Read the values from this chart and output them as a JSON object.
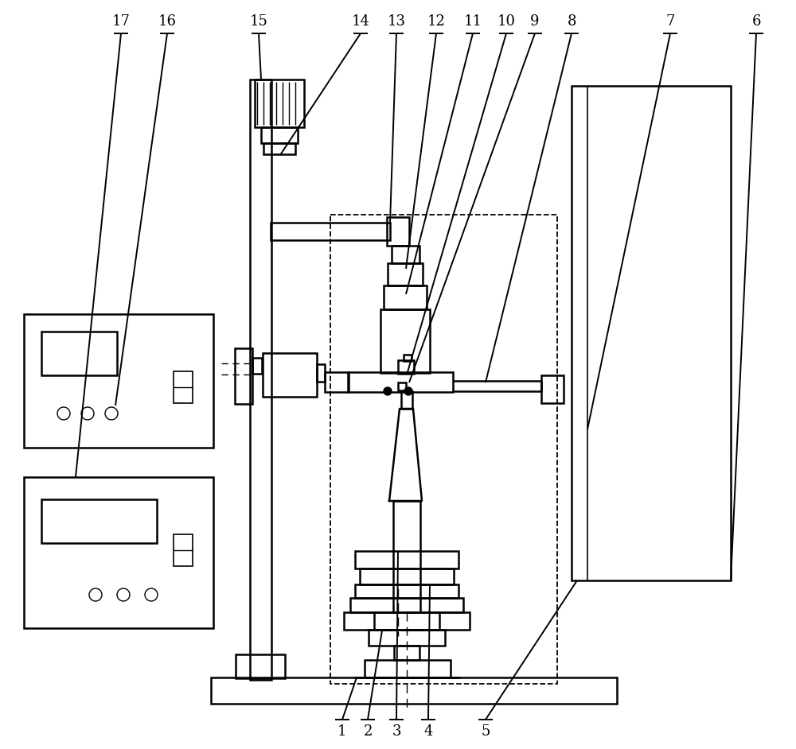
{
  "fig_width": 10.0,
  "fig_height": 9.42,
  "bg_color": "#ffffff",
  "line_color": "#000000",
  "lw": 1.8,
  "label_fontsize": 13
}
